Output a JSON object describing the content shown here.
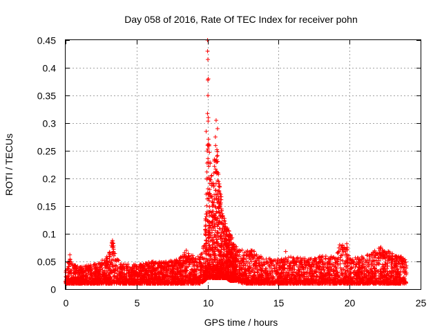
{
  "chart_data": {
    "type": "scatter",
    "title": "Day 058 of 2016, Rate Of TEC Index for receiver pohn",
    "xlabel": "GPS time / hours",
    "ylabel": "ROTI / TECUs",
    "xlim": [
      0,
      25
    ],
    "ylim": [
      0,
      0.45
    ],
    "xticks": [
      0,
      5,
      10,
      15,
      20,
      25
    ],
    "xtick_labels": [
      "0",
      "5",
      "10",
      "15",
      "20",
      "25"
    ],
    "yticks": [
      0,
      0.05,
      0.1,
      0.15,
      0.2,
      0.25,
      0.3,
      0.35,
      0.4,
      0.45
    ],
    "ytick_labels": [
      "0",
      "0.05",
      "0.1",
      "0.15",
      "0.2",
      "0.25",
      "0.3",
      "0.35",
      "0.4",
      "0.45"
    ],
    "grid": true,
    "marker": "+",
    "color": "#ff0000",
    "series": [
      {
        "name": "ROTI",
        "envelope": {
          "x": [
            0,
            0.3,
            0.5,
            1.0,
            2.0,
            3.0,
            3.3,
            3.5,
            4.0,
            5.0,
            6.0,
            7.0,
            8.0,
            8.5,
            9.0,
            9.5,
            9.8,
            9.95,
            10.0,
            10.05,
            10.2,
            10.4,
            10.6,
            10.8,
            11.0,
            11.3,
            11.6,
            12.0,
            12.5,
            13.0,
            13.5,
            14.0,
            15.0,
            16.0,
            17.0,
            18.0,
            19.0,
            19.3,
            19.8,
            20.0,
            21.0,
            22.0,
            22.2,
            23.0,
            23.5,
            24.0
          ],
          "ymin": [
            0.01,
            0.01,
            0.01,
            0.01,
            0.01,
            0.01,
            0.01,
            0.01,
            0.01,
            0.01,
            0.01,
            0.01,
            0.01,
            0.01,
            0.01,
            0.01,
            0.015,
            0.02,
            0.02,
            0.02,
            0.02,
            0.02,
            0.02,
            0.02,
            0.02,
            0.02,
            0.015,
            0.015,
            0.01,
            0.01,
            0.01,
            0.01,
            0.01,
            0.01,
            0.01,
            0.01,
            0.01,
            0.01,
            0.01,
            0.01,
            0.01,
            0.01,
            0.01,
            0.01,
            0.01,
            0.01
          ],
          "ymax": [
            0.04,
            0.055,
            0.045,
            0.04,
            0.045,
            0.06,
            0.09,
            0.06,
            0.045,
            0.045,
            0.05,
            0.05,
            0.055,
            0.07,
            0.06,
            0.06,
            0.09,
            0.21,
            0.44,
            0.31,
            0.22,
            0.23,
            0.3,
            0.2,
            0.16,
            0.12,
            0.1,
            0.08,
            0.07,
            0.075,
            0.065,
            0.055,
            0.055,
            0.06,
            0.055,
            0.06,
            0.06,
            0.08,
            0.08,
            0.055,
            0.06,
            0.075,
            0.075,
            0.065,
            0.06,
            0.055
          ]
        },
        "outliers": [
          {
            "x": 10.0,
            "y": 0.45
          },
          {
            "x": 10.0,
            "y": 0.43
          },
          {
            "x": 10.02,
            "y": 0.415
          },
          {
            "x": 10.05,
            "y": 0.38
          },
          {
            "x": 10.05,
            "y": 0.31
          },
          {
            "x": 10.6,
            "y": 0.305
          },
          {
            "x": 10.7,
            "y": 0.29
          },
          {
            "x": 10.55,
            "y": 0.275
          },
          {
            "x": 9.9,
            "y": 0.285
          },
          {
            "x": 10.0,
            "y": 0.26
          },
          {
            "x": 3.3,
            "y": 0.088
          },
          {
            "x": 3.35,
            "y": 0.083
          },
          {
            "x": 8.5,
            "y": 0.07
          },
          {
            "x": 15.5,
            "y": 0.068
          },
          {
            "x": 19.3,
            "y": 0.08
          },
          {
            "x": 19.8,
            "y": 0.082
          },
          {
            "x": 22.2,
            "y": 0.076
          },
          {
            "x": 0.3,
            "y": 0.062
          }
        ]
      }
    ]
  }
}
